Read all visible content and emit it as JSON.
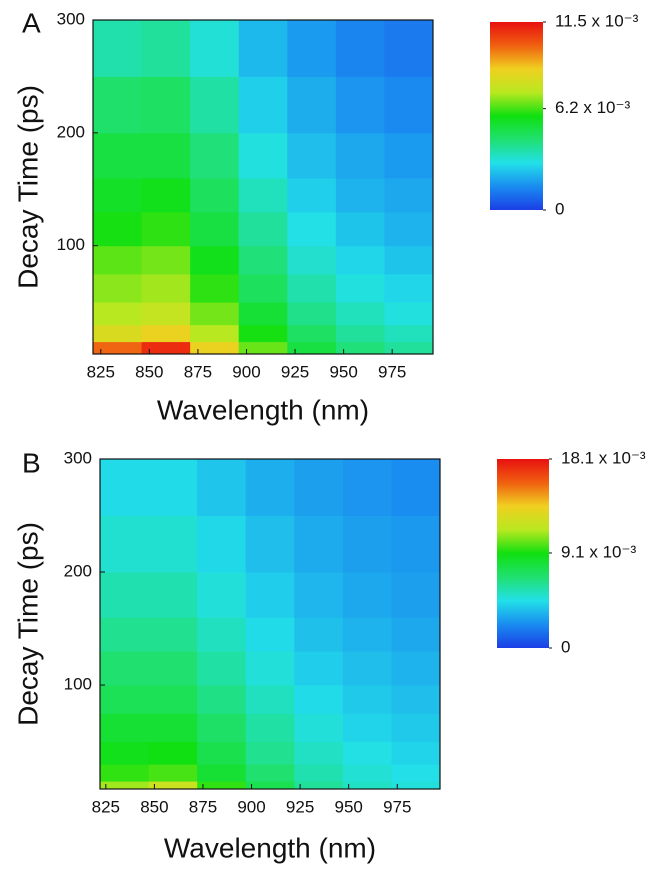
{
  "chart_data": [
    {
      "type": "heatmap",
      "panel_label": "A",
      "x_label": "Wavelength (nm)",
      "y_label": "Decay Time (ps)",
      "xlim": [
        821,
        996
      ],
      "ylim": [
        4,
        300
      ],
      "xticks": [
        825,
        850,
        875,
        900,
        925,
        950,
        975
      ],
      "yticks": [
        100,
        200,
        300
      ],
      "x_bins": [
        821,
        846,
        871,
        896,
        921,
        946,
        971,
        996
      ],
      "y_bins": [
        4,
        15,
        30,
        50,
        75,
        100,
        130,
        160,
        200,
        250,
        300
      ],
      "z": [
        [
          0.01,
          0.011,
          0.0085,
          0.0065,
          0.005,
          0.0042,
          0.0038
        ],
        [
          0.008,
          0.0085,
          0.0072,
          0.0058,
          0.0045,
          0.0038,
          0.0034
        ],
        [
          0.0072,
          0.0075,
          0.0066,
          0.0052,
          0.004,
          0.0034,
          0.003
        ],
        [
          0.0068,
          0.007,
          0.006,
          0.0046,
          0.0036,
          0.003,
          0.0027
        ],
        [
          0.0064,
          0.0066,
          0.0056,
          0.0042,
          0.0032,
          0.0027,
          0.0024
        ],
        [
          0.0058,
          0.006,
          0.005,
          0.0038,
          0.0029,
          0.0024,
          0.0021
        ],
        [
          0.0054,
          0.0056,
          0.0046,
          0.0034,
          0.0026,
          0.0021,
          0.0019
        ],
        [
          0.005,
          0.005,
          0.0042,
          0.003,
          0.0023,
          0.0019,
          0.0017
        ],
        [
          0.0044,
          0.0045,
          0.0037,
          0.0026,
          0.002,
          0.0016,
          0.0014
        ],
        [
          0.0036,
          0.0038,
          0.0031,
          0.0022,
          0.0017,
          0.0013,
          0.0011
        ]
      ],
      "zlim": [
        0,
        0.0115
      ],
      "colorbar_ticks": [
        0,
        {
          "value": 0.0062,
          "label": "6.2 x 10⁻³"
        },
        {
          "value": 0.0115,
          "label": "11.5 x 10⁻³"
        }
      ],
      "colormap": [
        "#1b3ee6",
        "#1a8cf0",
        "#22e0e8",
        "#20e070",
        "#10e010",
        "#b8e820",
        "#f0d020",
        "#f06010",
        "#e81010"
      ]
    },
    {
      "type": "heatmap",
      "panel_label": "B",
      "x_label": "Wavelength (nm)",
      "y_label": "Decay Time (ps)",
      "xlim": [
        822,
        997
      ],
      "ylim": [
        8,
        300
      ],
      "xticks": [
        825,
        850,
        875,
        900,
        925,
        950,
        975
      ],
      "yticks": [
        100,
        200,
        300
      ],
      "x_bins": [
        822,
        847,
        872,
        897,
        922,
        947,
        972,
        997
      ],
      "y_bins": [
        8,
        15,
        30,
        50,
        75,
        100,
        130,
        160,
        200,
        250,
        300
      ],
      "z": [
        [
          0.011,
          0.012,
          0.0095,
          0.0075,
          0.006,
          0.0052,
          0.0048
        ],
        [
          0.0095,
          0.0098,
          0.0082,
          0.0068,
          0.0056,
          0.0049,
          0.0045
        ],
        [
          0.0088,
          0.009,
          0.0076,
          0.0062,
          0.0052,
          0.0046,
          0.0042
        ],
        [
          0.0082,
          0.0082,
          0.007,
          0.0058,
          0.0048,
          0.0042,
          0.0039
        ],
        [
          0.0074,
          0.0074,
          0.0064,
          0.0053,
          0.0044,
          0.0039,
          0.0036
        ],
        [
          0.0068,
          0.0068,
          0.0058,
          0.0048,
          0.004,
          0.0036,
          0.0033
        ],
        [
          0.0062,
          0.0062,
          0.0053,
          0.0044,
          0.0037,
          0.0033,
          0.003
        ],
        [
          0.0056,
          0.0056,
          0.0048,
          0.004,
          0.0034,
          0.003,
          0.0028
        ],
        [
          0.005,
          0.005,
          0.0043,
          0.0036,
          0.0031,
          0.0028,
          0.0026
        ],
        [
          0.0044,
          0.0044,
          0.0038,
          0.0032,
          0.0028,
          0.0025,
          0.0023
        ]
      ],
      "zlim": [
        0,
        0.0181
      ],
      "colorbar_ticks": [
        0,
        {
          "value": 0.0091,
          "label": "9.1 x 10⁻³"
        },
        {
          "value": 0.0181,
          "label": "18.1  x 10⁻³"
        }
      ],
      "colormap": [
        "#1b3ee6",
        "#1a8cf0",
        "#22e0e8",
        "#20e070",
        "#10e010",
        "#b8e820",
        "#f0d020",
        "#f06010",
        "#e81010"
      ]
    }
  ]
}
